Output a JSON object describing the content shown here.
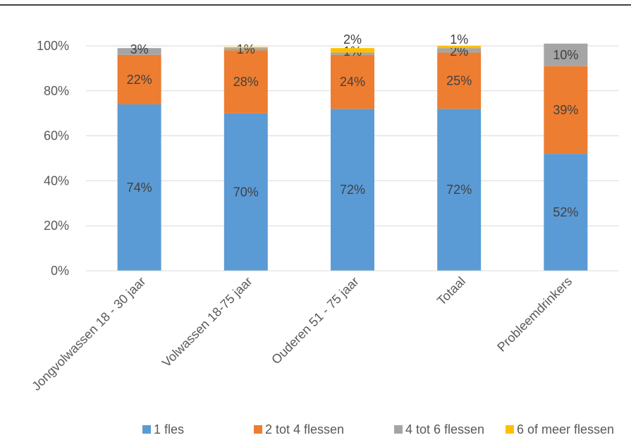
{
  "chart_data": {
    "type": "bar",
    "stacked": true,
    "percent": true,
    "categories": [
      "Jongvolwassen 18 - 30 jaar",
      "Volwassen 18-75 jaar",
      "Ouderen 51 - 75 jaar",
      "Totaal",
      "Probleemdrinkers"
    ],
    "series": [
      {
        "name": "1 fles",
        "color": "#5B9BD5",
        "values": [
          74,
          70,
          72,
          72,
          52
        ],
        "labels": [
          "74%",
          "70%",
          "72%",
          "72%",
          "52%"
        ]
      },
      {
        "name": "2 tot 4 flessen",
        "color": "#ED7D31",
        "values": [
          22,
          28,
          24,
          25,
          39
        ],
        "labels": [
          "22%",
          "28%",
          "24%",
          "25%",
          "39%"
        ]
      },
      {
        "name": "4 tot 6 flessen",
        "color": "#A5A5A5",
        "values": [
          3,
          1,
          1,
          2,
          10
        ],
        "labels": [
          "3%",
          "1%",
          "1%",
          "2%",
          "10%"
        ]
      },
      {
        "name": "6 of meer flessen",
        "color": "#FFC000",
        "values": [
          0,
          0.5,
          2,
          1,
          0
        ],
        "labels": [
          "",
          "",
          "2%",
          "1%",
          ""
        ]
      }
    ],
    "yticks": [
      "0%",
      "20%",
      "40%",
      "60%",
      "80%",
      "100%"
    ],
    "ylim": [
      0,
      100
    ],
    "grid": true,
    "legend": "bottom",
    "title": "",
    "xlabel": "",
    "ylabel": ""
  }
}
